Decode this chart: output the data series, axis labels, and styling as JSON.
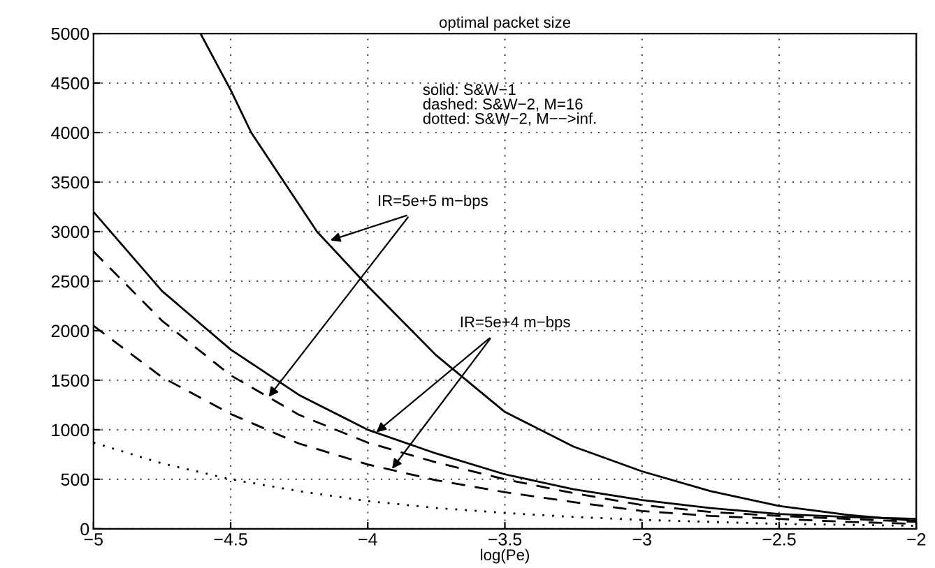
{
  "chart_data": {
    "type": "line",
    "title": "optimal packet size",
    "xlabel": "log(Pe)",
    "xlim": [
      -5,
      -2
    ],
    "ylim": [
      0,
      5000
    ],
    "xticks": [
      -5,
      -4.5,
      -4,
      -3.5,
      -3,
      -2.5,
      -2
    ],
    "yticks": [
      0,
      500,
      1000,
      1500,
      2000,
      2500,
      3000,
      3500,
      4000,
      4500,
      5000
    ],
    "grid": true,
    "marker": "none",
    "x": [
      -5,
      -4.75,
      -4.5,
      -4.25,
      -4,
      -3.75,
      -3.5,
      -3.25,
      -3,
      -2.75,
      -2.5,
      -2.25,
      -2
    ],
    "series": [
      {
        "color": "#000000",
        "line_style": "solid",
        "x": [
          -4.61,
          -4.5,
          -4.425,
          -4.185,
          -4,
          -3.75,
          -3.5,
          -3.25,
          -3,
          -2.75,
          -2.5,
          -2.25,
          -2
        ],
        "values": [
          5000,
          4430,
          4000,
          3000,
          2450,
          1750,
          1180,
          830,
          580,
          380,
          230,
          140,
          80
        ]
      },
      {
        "color": "#000000",
        "line_style": "solid",
        "values": [
          3200,
          2400,
          1810,
          1350,
          1000,
          760,
          550,
          400,
          290,
          210,
          150,
          120,
          100
        ]
      },
      {
        "color": "#000000",
        "line_style": "dashed",
        "values": [
          2800,
          2100,
          1550,
          1150,
          870,
          670,
          500,
          360,
          240,
          170,
          130,
          100,
          70
        ]
      },
      {
        "color": "#000000",
        "line_style": "dashed",
        "values": [
          2050,
          1530,
          1160,
          860,
          650,
          490,
          370,
          270,
          180,
          130,
          100,
          70,
          50
        ]
      },
      {
        "color": "#000000",
        "line_style": "dotted",
        "values": [
          870,
          660,
          500,
          380,
          280,
          210,
          160,
          120,
          90,
          70,
          50,
          40,
          30
        ]
      }
    ],
    "annotations": [
      "solid: S&W−1\ndashed: S&W−2, M=16\ndotted: S&W−2, M−−>inf.",
      {
        "text": "IR=5e+5 m−bps",
        "x": -4.15,
        "y": 2900
      },
      {
        "text": "IR=5e+4 m−bps",
        "x": -3.98,
        "y": 950
      }
    ]
  }
}
